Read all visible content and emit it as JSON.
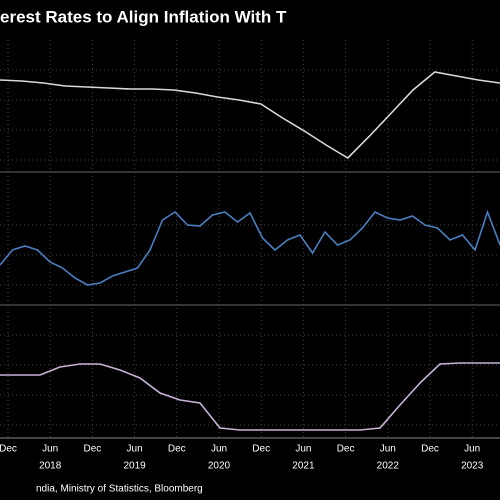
{
  "title": "erest Rates to Align Inflation With T",
  "source": "ndia, Ministry of Statistics, Bloomberg",
  "xtick_labels": [
    "Dec",
    "Jun",
    "Dec",
    "Jun",
    "Dec",
    "Jun",
    "Dec",
    "Jun",
    "Dec",
    "Jun",
    "Dec",
    "Jun"
  ],
  "year_labels": [
    "2018",
    "2019",
    "2020",
    "2021",
    "2022",
    "2023"
  ],
  "chart_data": [
    {
      "type": "line",
      "color": "#d9d9d9",
      "ylim": [
        0,
        105
      ],
      "yticks": [
        5,
        35,
        65,
        95
      ],
      "values": [
        85,
        84,
        82,
        79,
        78,
        77,
        76,
        76,
        75,
        72,
        68,
        65,
        61,
        47,
        34,
        20,
        7,
        29,
        52,
        75,
        93,
        89,
        85,
        82
      ]
    },
    {
      "type": "line",
      "color": "#4a7fc1",
      "ylim": [
        0,
        105
      ],
      "yticks": [
        15,
        45,
        75
      ],
      "values": [
        35,
        50,
        54,
        50,
        38,
        32,
        22,
        15,
        17,
        24,
        28,
        32,
        50,
        80,
        88,
        75,
        74,
        85,
        88,
        78,
        87,
        62,
        50,
        60,
        65,
        47,
        68,
        55,
        60,
        72,
        88,
        82,
        80,
        84,
        75,
        72,
        60,
        65,
        50,
        88,
        55
      ]
    },
    {
      "type": "line",
      "color": "#c9b3d9",
      "ylim": [
        0,
        125
      ],
      "yticks": [
        10,
        40,
        70,
        100
      ],
      "values": [
        60,
        60,
        60,
        68,
        71,
        71,
        65,
        57,
        42,
        35,
        32,
        7,
        5,
        5,
        5,
        5,
        5,
        5,
        5,
        7,
        30,
        52,
        71,
        72,
        72,
        72
      ]
    }
  ]
}
